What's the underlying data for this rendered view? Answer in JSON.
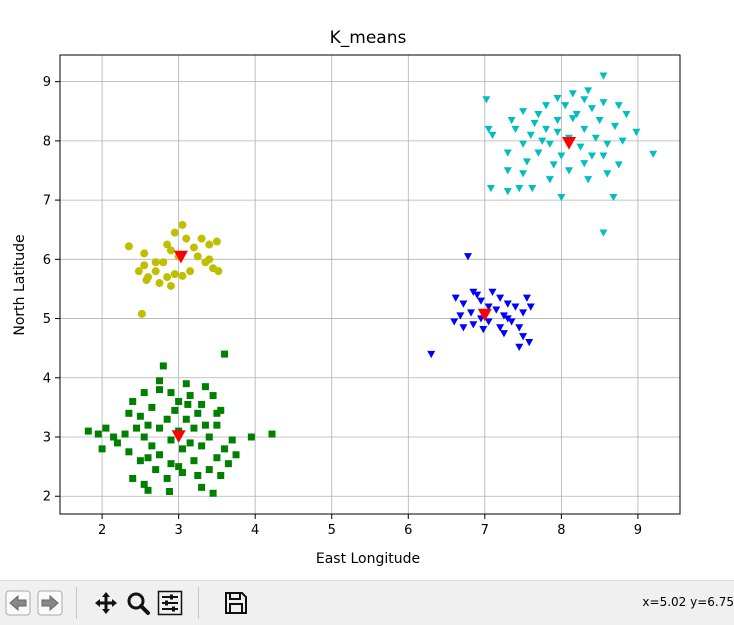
{
  "chart_data": {
    "type": "scatter",
    "title": "K_means",
    "xlabel": "East Longitude",
    "ylabel": "North Latitude",
    "xlim": [
      1.45,
      9.55
    ],
    "ylim": [
      1.7,
      9.45
    ],
    "xticks": [
      2,
      3,
      4,
      5,
      6,
      7,
      8,
      9
    ],
    "yticks": [
      2,
      3,
      4,
      5,
      6,
      7,
      8,
      9
    ],
    "grid": true,
    "legend": "none",
    "series": [
      {
        "marker": "square",
        "color": "#008000",
        "points": [
          [
            2.8,
            4.2
          ],
          [
            3.6,
            4.4
          ],
          [
            3.1,
            3.9
          ],
          [
            2.75,
            3.8
          ],
          [
            3.35,
            3.85
          ],
          [
            3.15,
            3.7
          ],
          [
            2.55,
            3.75
          ],
          [
            3.45,
            3.7
          ],
          [
            2.4,
            3.6
          ],
          [
            3.0,
            3.6
          ],
          [
            3.3,
            3.55
          ],
          [
            2.65,
            3.5
          ],
          [
            2.95,
            3.45
          ],
          [
            2.35,
            3.4
          ],
          [
            3.25,
            3.4
          ],
          [
            3.55,
            3.45
          ],
          [
            2.5,
            3.35
          ],
          [
            2.85,
            3.3
          ],
          [
            3.1,
            3.3
          ],
          [
            2.6,
            3.2
          ],
          [
            3.35,
            3.2
          ],
          [
            2.45,
            3.15
          ],
          [
            2.75,
            3.15
          ],
          [
            3.0,
            3.1
          ],
          [
            3.2,
            3.15
          ],
          [
            3.5,
            3.2
          ],
          [
            2.05,
            3.15
          ],
          [
            1.95,
            3.05
          ],
          [
            1.82,
            3.1
          ],
          [
            2.15,
            3.0
          ],
          [
            2.3,
            3.05
          ],
          [
            2.55,
            3.0
          ],
          [
            2.9,
            2.95
          ],
          [
            3.15,
            2.9
          ],
          [
            3.4,
            3.0
          ],
          [
            3.7,
            2.95
          ],
          [
            3.95,
            3.0
          ],
          [
            4.22,
            3.05
          ],
          [
            2.0,
            2.8
          ],
          [
            2.2,
            2.9
          ],
          [
            2.65,
            2.85
          ],
          [
            3.05,
            2.8
          ],
          [
            3.3,
            2.85
          ],
          [
            3.6,
            2.8
          ],
          [
            2.35,
            2.75
          ],
          [
            2.75,
            2.7
          ],
          [
            3.5,
            2.65
          ],
          [
            3.75,
            2.7
          ],
          [
            2.5,
            2.6
          ],
          [
            2.9,
            2.55
          ],
          [
            3.2,
            2.6
          ],
          [
            3.65,
            2.55
          ],
          [
            2.7,
            2.45
          ],
          [
            3.05,
            2.4
          ],
          [
            3.4,
            2.45
          ],
          [
            2.4,
            2.3
          ],
          [
            2.85,
            2.3
          ],
          [
            3.25,
            2.35
          ],
          [
            2.55,
            2.2
          ],
          [
            3.3,
            2.15
          ],
          [
            2.6,
            2.1
          ],
          [
            2.88,
            2.08
          ],
          [
            3.45,
            2.05
          ],
          [
            2.6,
            2.65
          ],
          [
            3.0,
            2.5
          ],
          [
            3.12,
            3.55
          ],
          [
            2.75,
            3.95
          ],
          [
            3.5,
            3.4
          ],
          [
            3.55,
            2.35
          ],
          [
            2.9,
            3.75
          ]
        ]
      },
      {
        "marker": "circle",
        "color": "#bfbf00",
        "points": [
          [
            3.05,
            6.58
          ],
          [
            2.95,
            6.45
          ],
          [
            3.1,
            6.35
          ],
          [
            3.3,
            6.35
          ],
          [
            2.35,
            6.22
          ],
          [
            3.5,
            6.3
          ],
          [
            2.85,
            6.25
          ],
          [
            3.2,
            6.2
          ],
          [
            3.4,
            6.25
          ],
          [
            2.9,
            6.15
          ],
          [
            2.55,
            6.1
          ],
          [
            3.0,
            6.05
          ],
          [
            3.25,
            6.05
          ],
          [
            2.7,
            5.95
          ],
          [
            2.55,
            5.9
          ],
          [
            2.8,
            5.95
          ],
          [
            3.35,
            5.95
          ],
          [
            3.45,
            5.85
          ],
          [
            2.48,
            5.8
          ],
          [
            2.7,
            5.8
          ],
          [
            3.15,
            5.8
          ],
          [
            3.52,
            5.8
          ],
          [
            2.6,
            5.7
          ],
          [
            2.85,
            5.7
          ],
          [
            3.05,
            5.72
          ],
          [
            2.75,
            5.6
          ],
          [
            2.9,
            5.55
          ],
          [
            2.58,
            5.65
          ],
          [
            2.52,
            5.08
          ],
          [
            2.95,
            5.75
          ],
          [
            3.4,
            6.0
          ]
        ]
      },
      {
        "marker": "triangle-down",
        "color": "#0000ff",
        "points": [
          [
            6.78,
            6.05
          ],
          [
            6.62,
            5.35
          ],
          [
            6.85,
            5.45
          ],
          [
            7.1,
            5.45
          ],
          [
            6.95,
            5.3
          ],
          [
            7.2,
            5.35
          ],
          [
            7.55,
            5.35
          ],
          [
            7.3,
            5.25
          ],
          [
            6.72,
            5.25
          ],
          [
            7.05,
            5.2
          ],
          [
            7.4,
            5.2
          ],
          [
            7.6,
            5.2
          ],
          [
            6.82,
            5.1
          ],
          [
            7.15,
            5.15
          ],
          [
            7.5,
            5.1
          ],
          [
            6.68,
            5.05
          ],
          [
            6.95,
            5.0
          ],
          [
            7.25,
            5.05
          ],
          [
            6.6,
            4.95
          ],
          [
            6.85,
            4.9
          ],
          [
            7.05,
            4.95
          ],
          [
            7.35,
            4.95
          ],
          [
            6.72,
            4.85
          ],
          [
            6.98,
            4.82
          ],
          [
            7.2,
            4.85
          ],
          [
            7.45,
            4.85
          ],
          [
            7.25,
            4.75
          ],
          [
            7.5,
            4.7
          ],
          [
            7.58,
            4.6
          ],
          [
            7.45,
            4.52
          ],
          [
            6.3,
            4.4
          ],
          [
            6.9,
            5.4
          ],
          [
            7.3,
            5.0
          ]
        ]
      },
      {
        "marker": "triangle-down",
        "color": "#00bfbf",
        "points": [
          [
            8.55,
            9.1
          ],
          [
            7.02,
            8.7
          ],
          [
            8.15,
            8.8
          ],
          [
            8.35,
            8.85
          ],
          [
            7.95,
            8.72
          ],
          [
            8.3,
            8.7
          ],
          [
            8.55,
            8.65
          ],
          [
            7.8,
            8.6
          ],
          [
            8.05,
            8.6
          ],
          [
            8.4,
            8.55
          ],
          [
            8.75,
            8.6
          ],
          [
            7.5,
            8.5
          ],
          [
            7.7,
            8.45
          ],
          [
            8.2,
            8.45
          ],
          [
            8.85,
            8.45
          ],
          [
            7.35,
            8.35
          ],
          [
            7.65,
            8.3
          ],
          [
            7.95,
            8.35
          ],
          [
            8.5,
            8.35
          ],
          [
            7.05,
            8.2
          ],
          [
            7.4,
            8.2
          ],
          [
            7.8,
            8.2
          ],
          [
            8.3,
            8.2
          ],
          [
            8.7,
            8.25
          ],
          [
            8.98,
            8.15
          ],
          [
            7.1,
            8.1
          ],
          [
            7.6,
            8.1
          ],
          [
            8.1,
            8.05
          ],
          [
            8.45,
            8.05
          ],
          [
            8.8,
            8.0
          ],
          [
            7.5,
            7.95
          ],
          [
            7.85,
            7.95
          ],
          [
            8.25,
            7.9
          ],
          [
            8.6,
            7.95
          ],
          [
            7.3,
            7.8
          ],
          [
            7.7,
            7.8
          ],
          [
            8.0,
            7.75
          ],
          [
            8.4,
            7.75
          ],
          [
            9.2,
            7.78
          ],
          [
            7.55,
            7.65
          ],
          [
            7.9,
            7.6
          ],
          [
            8.3,
            7.62
          ],
          [
            8.75,
            7.6
          ],
          [
            7.3,
            7.5
          ],
          [
            8.1,
            7.5
          ],
          [
            8.6,
            7.45
          ],
          [
            7.5,
            7.45
          ],
          [
            7.85,
            7.35
          ],
          [
            8.35,
            7.35
          ],
          [
            7.62,
            7.2
          ],
          [
            7.45,
            7.2
          ],
          [
            7.3,
            7.15
          ],
          [
            7.08,
            7.2
          ],
          [
            8.0,
            7.05
          ],
          [
            8.68,
            7.05
          ],
          [
            8.55,
            6.45
          ],
          [
            8.15,
            8.38
          ],
          [
            7.95,
            8.15
          ],
          [
            8.55,
            7.75
          ],
          [
            7.75,
            8.0
          ]
        ]
      },
      {
        "marker": "triangle-down",
        "color": "#ff0000",
        "name": "",
        "points": [
          [
            3.0,
            3.02
          ],
          [
            3.03,
            6.05
          ],
          [
            7.0,
            5.07
          ],
          [
            8.1,
            7.97
          ]
        ],
        "role": "centroids"
      }
    ]
  },
  "toolbar": {
    "buttons": [
      {
        "name": "back-button",
        "icon": "arrow-left-icon"
      },
      {
        "name": "forward-button",
        "icon": "arrow-right-icon"
      },
      {
        "name": "pan-button",
        "icon": "move-icon"
      },
      {
        "name": "zoom-button",
        "icon": "magnifier-icon"
      },
      {
        "name": "subplots-button",
        "icon": "sliders-icon"
      },
      {
        "name": "save-button",
        "icon": "floppy-disk-icon"
      }
    ],
    "coords": "x=5.02 y=6.75"
  }
}
